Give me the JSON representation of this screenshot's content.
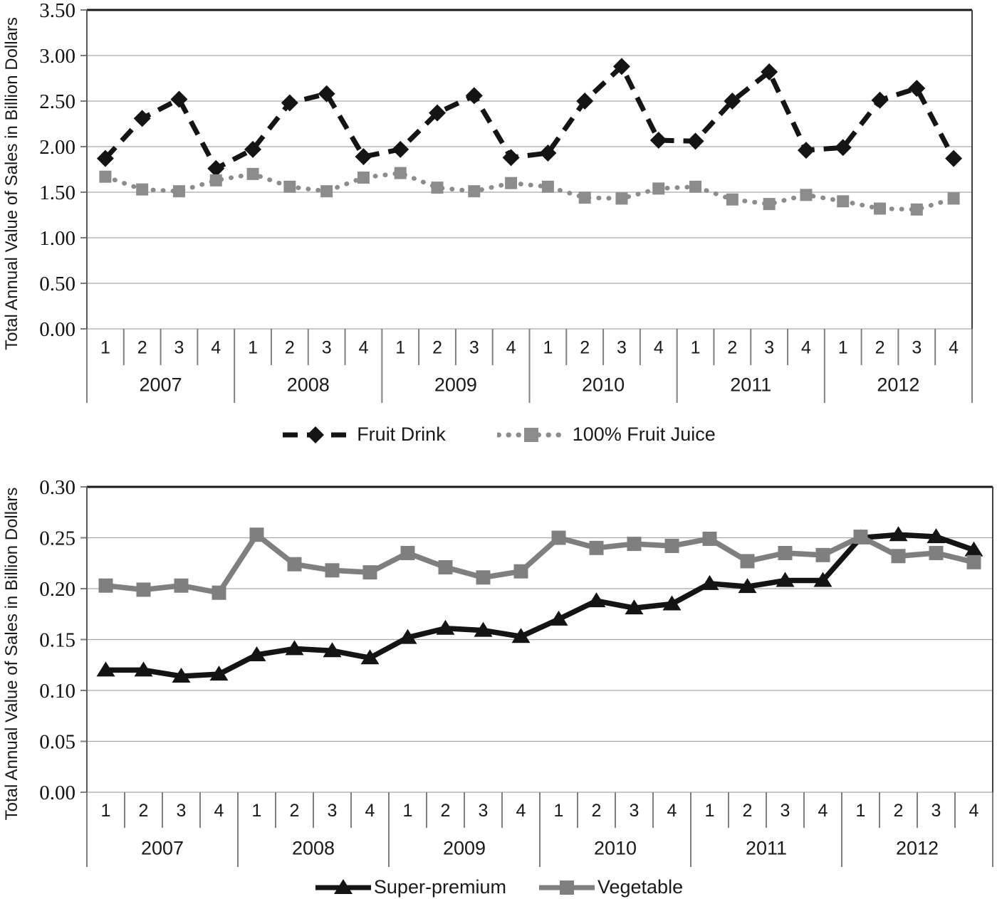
{
  "figure_title": "",
  "chart_data": [
    {
      "type": "line",
      "title": "",
      "xlabel": "",
      "ylabel": "Total Annual Value of Sales in Billion Dollars",
      "ylim": [
        0.0,
        3.5
      ],
      "ytick_step": 0.5,
      "ytick_labels": [
        "0.00",
        "0.50",
        "1.00",
        "1.50",
        "2.00",
        "2.50",
        "3.00",
        "3.50"
      ],
      "grid": true,
      "legend_position": "bottom",
      "x_years": [
        "2007",
        "2008",
        "2009",
        "2010",
        "2011",
        "2012"
      ],
      "x_quarters": [
        "1",
        "2",
        "3",
        "4"
      ],
      "series": [
        {
          "name": "Fruit Drink",
          "color": "#141414",
          "line_style": "dashed",
          "marker": "diamond",
          "values": [
            1.87,
            2.31,
            2.52,
            1.76,
            1.97,
            2.48,
            2.58,
            1.89,
            1.97,
            2.37,
            2.56,
            1.88,
            1.93,
            2.5,
            2.88,
            2.07,
            2.06,
            2.5,
            2.82,
            1.96,
            1.99,
            2.51,
            2.64,
            1.87
          ]
        },
        {
          "name": "100% Fruit Juice",
          "color": "#8c8c8c",
          "line_style": "dotted",
          "marker": "square",
          "values": [
            1.67,
            1.53,
            1.51,
            1.63,
            1.7,
            1.56,
            1.51,
            1.66,
            1.71,
            1.55,
            1.51,
            1.6,
            1.56,
            1.44,
            1.43,
            1.54,
            1.56,
            1.42,
            1.37,
            1.47,
            1.4,
            1.32,
            1.31,
            1.43
          ]
        }
      ]
    },
    {
      "type": "line",
      "title": "",
      "xlabel": "",
      "ylabel": "Total Annual Value of Sales in Billion Dollars",
      "ylim": [
        0.0,
        0.3
      ],
      "ytick_step": 0.05,
      "ytick_labels": [
        "0.00",
        "0.05",
        "0.10",
        "0.15",
        "0.20",
        "0.25",
        "0.30"
      ],
      "grid": true,
      "legend_position": "bottom",
      "x_years": [
        "2007",
        "2008",
        "2009",
        "2010",
        "2011",
        "2012"
      ],
      "x_quarters": [
        "1",
        "2",
        "3",
        "4"
      ],
      "series": [
        {
          "name": "Super-premium",
          "color": "#141414",
          "line_style": "solid",
          "marker": "triangle",
          "values": [
            0.12,
            0.12,
            0.114,
            0.116,
            0.135,
            0.141,
            0.139,
            0.132,
            0.152,
            0.161,
            0.159,
            0.153,
            0.17,
            0.188,
            0.181,
            0.185,
            0.205,
            0.202,
            0.208,
            0.208,
            0.25,
            0.253,
            0.251,
            0.238
          ]
        },
        {
          "name": "Vegetable",
          "color": "#7f7f7f",
          "line_style": "solid",
          "marker": "square",
          "values": [
            0.203,
            0.199,
            0.203,
            0.196,
            0.253,
            0.224,
            0.218,
            0.216,
            0.235,
            0.221,
            0.211,
            0.217,
            0.25,
            0.24,
            0.244,
            0.242,
            0.249,
            0.227,
            0.235,
            0.233,
            0.251,
            0.232,
            0.235,
            0.226
          ]
        }
      ]
    }
  ],
  "colors": {
    "black_series": "#141414",
    "gray_series": "#7f7f7f",
    "gray_dotted_series": "#8c8c8c",
    "gridline": "#a6a6a6",
    "axis": "#808080",
    "plot_border_top": "#1a1a1a"
  }
}
